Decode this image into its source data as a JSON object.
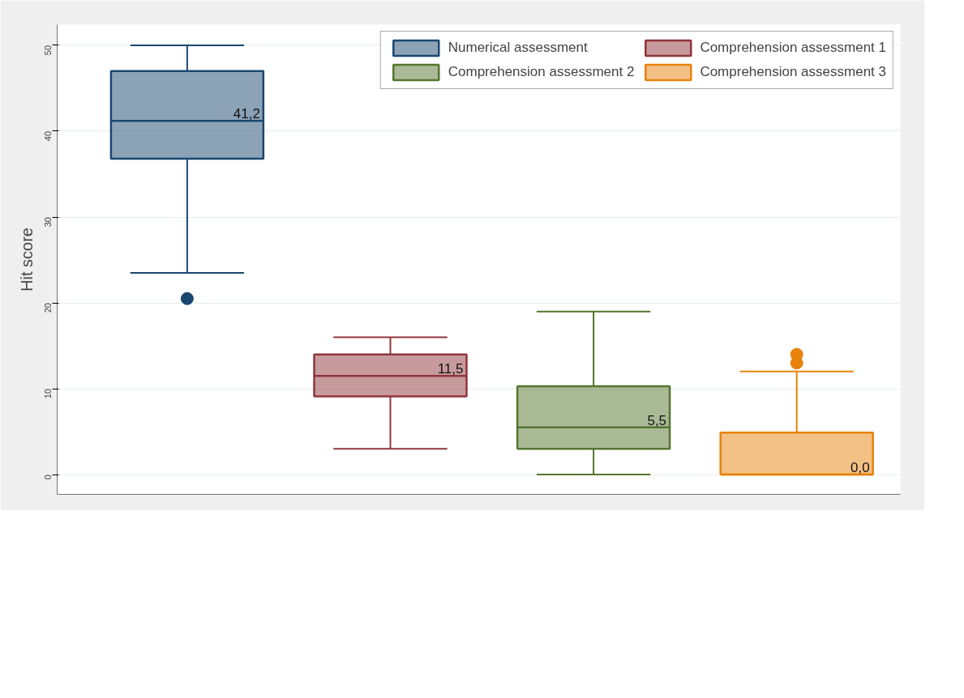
{
  "chart_data": {
    "type": "box",
    "ylabel": "Hit score",
    "categories": [
      null,
      null,
      null,
      null
    ],
    "ylim": [
      -2.3,
      52.4
    ],
    "yticks": [
      0,
      10,
      20,
      30,
      40,
      50
    ],
    "grid": "y",
    "legend": "top right",
    "tick_labels": "y",
    "series": [
      {
        "name": "Numerical assessment",
        "color": "#1a476f",
        "boxes": [
          {
            "low": 23.5,
            "q1": 36.8,
            "median": 41.2,
            "q3": 47,
            "high": 50,
            "outliers": [
              20.5
            ]
          },
          null,
          null,
          null
        ],
        "value_labels": [
          "41,2",
          null,
          null,
          null
        ]
      },
      {
        "name": "Comprehension assessment 1",
        "color": "#90353b",
        "boxes": [
          null,
          {
            "low": 3,
            "q1": 9.1,
            "median": 11.5,
            "q3": 14,
            "high": 16
          },
          null,
          null
        ],
        "value_labels": [
          null,
          "11,5",
          null,
          null
        ]
      },
      {
        "name": "Comprehension assessment 2",
        "color": "#55752f",
        "boxes": [
          null,
          null,
          {
            "low": 0,
            "q1": 3,
            "median": 5.5,
            "q3": 10.3,
            "high": 19
          },
          null
        ],
        "value_labels": [
          null,
          null,
          "5,5",
          null
        ]
      },
      {
        "name": "Comprehension assessment 3",
        "color": "#e8820c",
        "boxes": [
          null,
          null,
          null,
          {
            "low": 0,
            "q1": 0,
            "median": 0,
            "q3": 4.9,
            "high": 12,
            "outliers": [
              13,
              14
            ]
          }
        ],
        "value_labels": [
          null,
          null,
          null,
          "0,0"
        ]
      }
    ]
  }
}
